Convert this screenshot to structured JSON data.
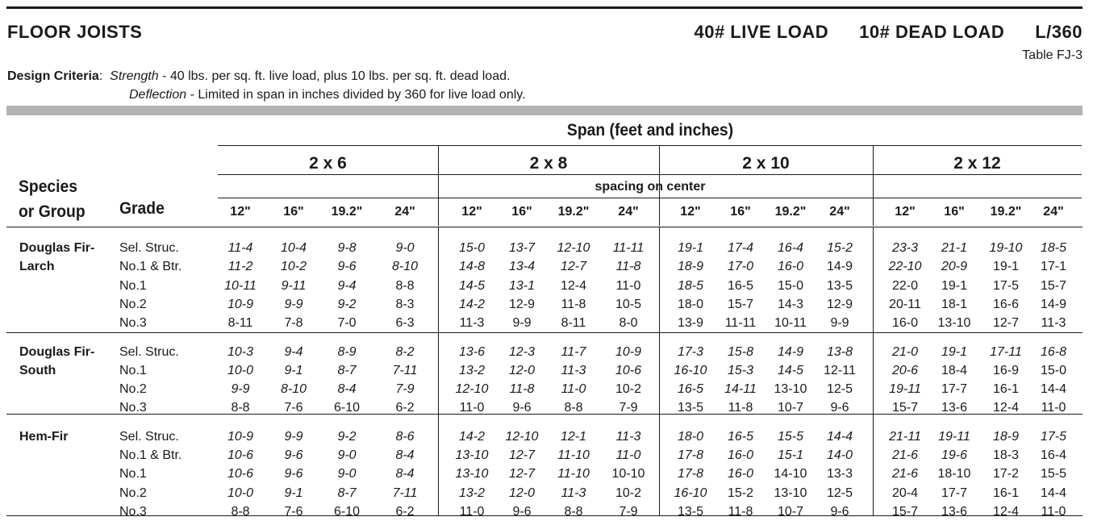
{
  "header": {
    "title": "FLOOR JOISTS",
    "live_load": "40# LIVE LOAD",
    "dead_load": "10# DEAD LOAD",
    "deflection_ratio": "L/360",
    "table_id": "Table  FJ-3"
  },
  "criteria": {
    "label": "Design Criteria",
    "colon": ":",
    "strength_term": "Strength",
    "strength_text": " - 40 lbs. per sq. ft. live load, plus 10 lbs. per sq. ft. dead load.",
    "deflection_term": "Deflection",
    "deflection_text": " - Limited in span in inches divided by 360 for live load only."
  },
  "table": {
    "span_header": "Span (feet and inches)",
    "species_header_1": "Species",
    "species_header_2": "or Group",
    "grade_header": "Grade",
    "spacing_header": "spacing on center",
    "sizes": [
      "2 x 6",
      "2 x 8",
      "2 x 10",
      "2 x 12"
    ],
    "spacings": [
      "12\"",
      "16\"",
      "19.2\"",
      "24\""
    ],
    "groups": [
      {
        "species": [
          "Douglas Fir-",
          "Larch"
        ],
        "rows": [
          {
            "grade": "Sel. Struc.",
            "values": [
              "11-4",
              "10-4",
              "9-8",
              "9-0",
              "15-0",
              "13-7",
              "12-10",
              "11-11",
              "19-1",
              "17-4",
              "16-4",
              "15-2",
              "23-3",
              "21-1",
              "19-10",
              "18-5"
            ],
            "italic": [
              1,
              1,
              1,
              1,
              1,
              1,
              1,
              1,
              1,
              1,
              1,
              1,
              1,
              1,
              1,
              1
            ]
          },
          {
            "grade": "No.1 & Btr.",
            "values": [
              "11-2",
              "10-2",
              "9-6",
              "8-10",
              "14-8",
              "13-4",
              "12-7",
              "11-8",
              "18-9",
              "17-0",
              "16-0",
              "14-9",
              "22-10",
              "20-9",
              "19-1",
              "17-1"
            ],
            "italic": [
              1,
              1,
              1,
              1,
              1,
              1,
              1,
              1,
              1,
              1,
              1,
              0,
              1,
              1,
              0,
              0
            ]
          },
          {
            "grade": "No.1",
            "values": [
              "10-11",
              "9-11",
              "9-4",
              "8-8",
              "14-5",
              "13-1",
              "12-4",
              "11-0",
              "18-5",
              "16-5",
              "15-0",
              "13-5",
              "22-0",
              "19-1",
              "17-5",
              "15-7"
            ],
            "italic": [
              1,
              1,
              1,
              0,
              1,
              1,
              0,
              0,
              1,
              0,
              0,
              0,
              0,
              0,
              0,
              0
            ]
          },
          {
            "grade": "No.2",
            "values": [
              "10-9",
              "9-9",
              "9-2",
              "8-3",
              "14-2",
              "12-9",
              "11-8",
              "10-5",
              "18-0",
              "15-7",
              "14-3",
              "12-9",
              "20-11",
              "18-1",
              "16-6",
              "14-9"
            ],
            "italic": [
              1,
              1,
              1,
              0,
              1,
              0,
              0,
              0,
              0,
              0,
              0,
              0,
              0,
              0,
              0,
              0
            ]
          },
          {
            "grade": "No.3",
            "values": [
              "8-11",
              "7-8",
              "7-0",
              "6-3",
              "11-3",
              "9-9",
              "8-11",
              "8-0",
              "13-9",
              "11-11",
              "10-11",
              "9-9",
              "16-0",
              "13-10",
              "12-7",
              "11-3"
            ],
            "italic": [
              0,
              0,
              0,
              0,
              0,
              0,
              0,
              0,
              0,
              0,
              0,
              0,
              0,
              0,
              0,
              0
            ]
          }
        ]
      },
      {
        "species": [
          "Douglas Fir-",
          "South"
        ],
        "rows": [
          {
            "grade": "Sel. Struc.",
            "values": [
              "10-3",
              "9-4",
              "8-9",
              "8-2",
              "13-6",
              "12-3",
              "11-7",
              "10-9",
              "17-3",
              "15-8",
              "14-9",
              "13-8",
              "21-0",
              "19-1",
              "17-11",
              "16-8"
            ],
            "italic": [
              1,
              1,
              1,
              1,
              1,
              1,
              1,
              1,
              1,
              1,
              1,
              1,
              1,
              1,
              1,
              1
            ]
          },
          {
            "grade": "No.1",
            "values": [
              "10-0",
              "9-1",
              "8-7",
              "7-11",
              "13-2",
              "12-0",
              "11-3",
              "10-6",
              "16-10",
              "15-3",
              "14-5",
              "12-11",
              "20-6",
              "18-4",
              "16-9",
              "15-0"
            ],
            "italic": [
              1,
              1,
              1,
              1,
              1,
              1,
              1,
              1,
              1,
              1,
              1,
              0,
              1,
              0,
              0,
              0
            ]
          },
          {
            "grade": "No.2",
            "values": [
              "9-9",
              "8-10",
              "8-4",
              "7-9",
              "12-10",
              "11-8",
              "11-0",
              "10-2",
              "16-5",
              "14-11",
              "13-10",
              "12-5",
              "19-11",
              "17-7",
              "16-1",
              "14-4"
            ],
            "italic": [
              1,
              1,
              1,
              1,
              1,
              1,
              1,
              0,
              1,
              1,
              0,
              0,
              1,
              0,
              0,
              0
            ]
          },
          {
            "grade": "No.3",
            "values": [
              "8-8",
              "7-6",
              "6-10",
              "6-2",
              "11-0",
              "9-6",
              "8-8",
              "7-9",
              "13-5",
              "11-8",
              "10-7",
              "9-6",
              "15-7",
              "13-6",
              "12-4",
              "11-0"
            ],
            "italic": [
              0,
              0,
              0,
              0,
              0,
              0,
              0,
              0,
              0,
              0,
              0,
              0,
              0,
              0,
              0,
              0
            ]
          }
        ]
      },
      {
        "species": [
          "Hem-Fir"
        ],
        "rows": [
          {
            "grade": "Sel. Struc.",
            "values": [
              "10-9",
              "9-9",
              "9-2",
              "8-6",
              "14-2",
              "12-10",
              "12-1",
              "11-3",
              "18-0",
              "16-5",
              "15-5",
              "14-4",
              "21-11",
              "19-11",
              "18-9",
              "17-5"
            ],
            "italic": [
              1,
              1,
              1,
              1,
              1,
              1,
              1,
              1,
              1,
              1,
              1,
              1,
              1,
              1,
              1,
              1
            ]
          },
          {
            "grade": "No.1 & Btr.",
            "values": [
              "10-6",
              "9-6",
              "9-0",
              "8-4",
              "13-10",
              "12-7",
              "11-10",
              "11-0",
              "17-8",
              "16-0",
              "15-1",
              "14-0",
              "21-6",
              "19-6",
              "18-3",
              "16-4"
            ],
            "italic": [
              1,
              1,
              1,
              1,
              1,
              1,
              1,
              1,
              1,
              1,
              1,
              1,
              1,
              1,
              0,
              0
            ]
          },
          {
            "grade": "No.1",
            "values": [
              "10-6",
              "9-6",
              "9-0",
              "8-4",
              "13-10",
              "12-7",
              "11-10",
              "10-10",
              "17-8",
              "16-0",
              "14-10",
              "13-3",
              "21-6",
              "18-10",
              "17-2",
              "15-5"
            ],
            "italic": [
              1,
              1,
              1,
              1,
              1,
              1,
              1,
              0,
              1,
              1,
              0,
              0,
              1,
              0,
              0,
              0
            ]
          },
          {
            "grade": "No.2",
            "values": [
              "10-0",
              "9-1",
              "8-7",
              "7-11",
              "13-2",
              "12-0",
              "11-3",
              "10-2",
              "16-10",
              "15-2",
              "13-10",
              "12-5",
              "20-4",
              "17-7",
              "16-1",
              "14-4"
            ],
            "italic": [
              1,
              1,
              1,
              1,
              1,
              1,
              1,
              0,
              1,
              0,
              0,
              0,
              0,
              0,
              0,
              0
            ]
          },
          {
            "grade": "No.3",
            "values": [
              "8-8",
              "7-6",
              "6-10",
              "6-2",
              "11-0",
              "9-6",
              "8-8",
              "7-9",
              "13-5",
              "11-8",
              "10-7",
              "9-6",
              "15-7",
              "13-6",
              "12-4",
              "11-0"
            ],
            "italic": [
              0,
              0,
              0,
              0,
              0,
              0,
              0,
              0,
              0,
              0,
              0,
              0,
              0,
              0,
              0,
              0
            ]
          }
        ]
      }
    ]
  }
}
